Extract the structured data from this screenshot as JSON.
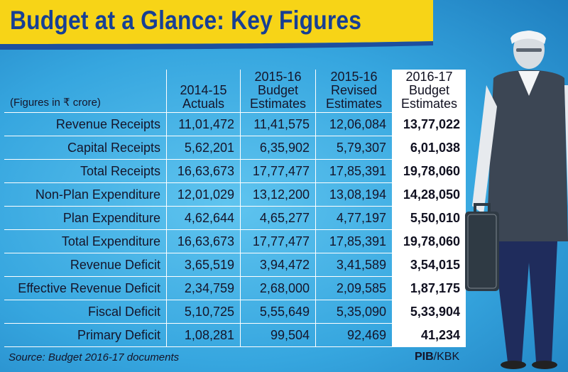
{
  "title": "Budget at a Glance: Key Figures",
  "table": {
    "units_label": "(Figures in ₹ crore)",
    "columns": [
      {
        "line1": "2014-15",
        "line2": "Actuals",
        "line3": ""
      },
      {
        "line1": "2015-16",
        "line2": "Budget",
        "line3": "Estimates"
      },
      {
        "line1": "2015-16",
        "line2": "Revised",
        "line3": "Estimates"
      },
      {
        "line1": "2016-17",
        "line2": "Budget",
        "line3": "Estimates"
      }
    ],
    "rows": [
      {
        "label": "Revenue Receipts",
        "values": [
          "11,01,472",
          "11,41,575",
          "12,06,084",
          "13,77,022"
        ]
      },
      {
        "label": "Capital Receipts",
        "values": [
          "5,62,201",
          "6,35,902",
          "5,79,307",
          "6,01,038"
        ]
      },
      {
        "label": "Total Receipts",
        "values": [
          "16,63,673",
          "17,77,477",
          "17,85,391",
          "19,78,060"
        ]
      },
      {
        "label": "Non-Plan Expenditure",
        "values": [
          "12,01,029",
          "13,12,200",
          "13,08,194",
          "14,28,050"
        ]
      },
      {
        "label": "Plan Expenditure",
        "values": [
          "4,62,644",
          "4,65,277",
          "4,77,197",
          "5,50,010"
        ]
      },
      {
        "label": "Total Expenditure",
        "values": [
          "16,63,673",
          "17,77,477",
          "17,85,391",
          "19,78,060"
        ]
      },
      {
        "label": "Revenue Deficit",
        "values": [
          "3,65,519",
          "3,94,472",
          "3,41,589",
          "3,54,015"
        ]
      },
      {
        "label": "Effective Revenue Deficit",
        "values": [
          "2,34,759",
          "2,68,000",
          "2,09,585",
          "1,87,175"
        ]
      },
      {
        "label": "Fiscal Deficit",
        "values": [
          "5,10,725",
          "5,55,649",
          "5,35,090",
          "5,33,904"
        ]
      },
      {
        "label": "Primary Deficit",
        "values": [
          "1,08,281",
          "99,504",
          "92,469",
          "41,234"
        ]
      }
    ]
  },
  "footer": {
    "source": "Source: Budget 2016-17 documents",
    "credit_a": "PIB",
    "credit_b": "/KBK"
  },
  "colors": {
    "background": "#36a6df",
    "title_bar": "#f7d417",
    "title_text": "#173f94",
    "highlight_column": "#ffffff"
  }
}
